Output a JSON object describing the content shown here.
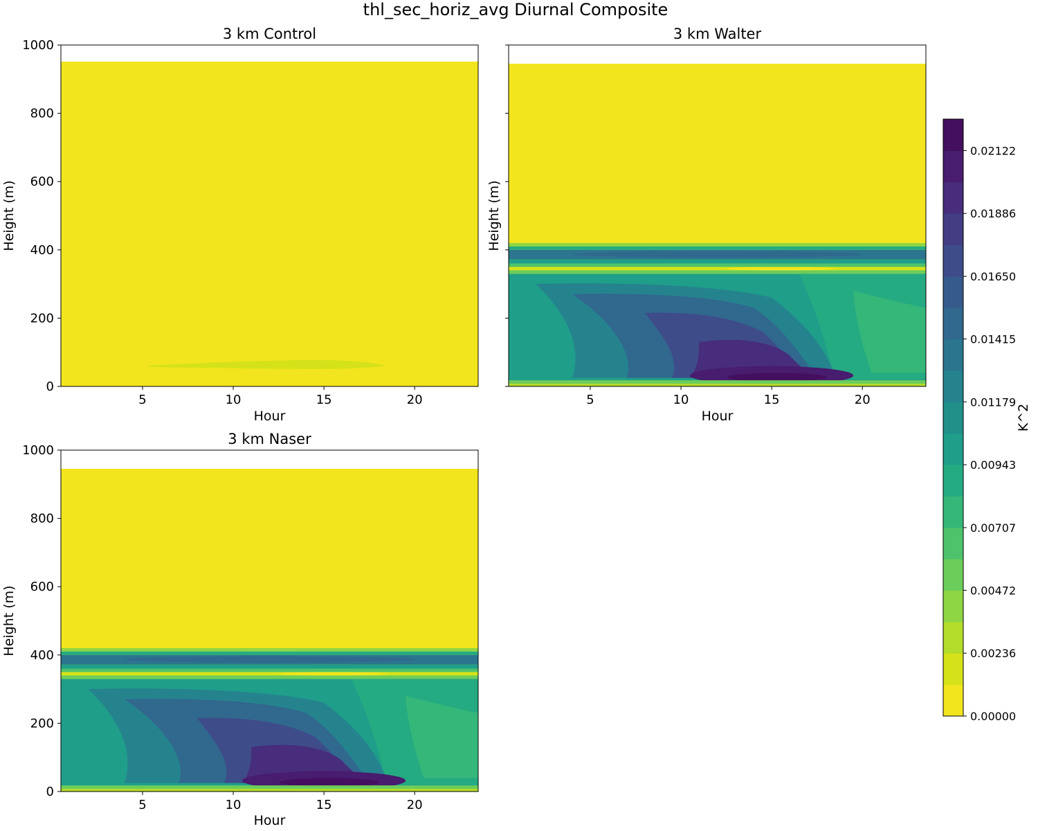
{
  "figure": {
    "title": "thl_sec_horiz_avg Diurnal Composite"
  },
  "chart_data": [
    {
      "type": "heatmap",
      "title": "3 km Control",
      "xlabel": "Hour",
      "ylabel": "Height (m)",
      "xlim": [
        0.5,
        23.5
      ],
      "ylim": [
        0,
        1000
      ],
      "xticks": [
        5,
        10,
        15,
        20
      ],
      "yticks": [
        0,
        200,
        400,
        600,
        800,
        1000
      ],
      "data_top_height": 950,
      "field": "near-zero everywhere; faint 0.001-0.002 band at 50-70 m between hours 6-18"
    },
    {
      "type": "heatmap",
      "title": "3 km Walter",
      "xlabel": "Hour",
      "ylabel": "Height (m)",
      "xlim": [
        0.5,
        23.5
      ],
      "ylim": [
        0,
        1000
      ],
      "xticks": [
        5,
        10,
        15,
        20
      ],
      "yticks": [
        0,
        200,
        400,
        600,
        800,
        1000
      ],
      "data_top_height": 945,
      "field": "band ~0.013-0.015 near 385 m, low values near 345 m; 0.008-0.016 below 330 m; maximum ~0.022 near 25 m at hour 15"
    },
    {
      "type": "heatmap",
      "title": "3 km Naser",
      "xlabel": "Hour",
      "ylabel": "Height (m)",
      "xlim": [
        0.5,
        23.5
      ],
      "ylim": [
        0,
        1000
      ],
      "xticks": [
        5,
        10,
        15,
        20
      ],
      "yticks": [
        0,
        200,
        400,
        600,
        800,
        1000
      ],
      "data_top_height": 945,
      "field": "same structure as Walter; maximum ~0.022 near 25 m at hour 15"
    }
  ],
  "colorbar": {
    "label": "K^2",
    "min": 0.0,
    "max": 0.0224,
    "ticks": [
      "0.00000",
      "0.00236",
      "0.00472",
      "0.00707",
      "0.00943",
      "0.01179",
      "0.01415",
      "0.01650",
      "0.01886",
      "0.02122"
    ],
    "colors": [
      "#f2e51d",
      "#d5e21a",
      "#b3dc2b",
      "#8fd644",
      "#6ccd5a",
      "#4ec36b",
      "#35b779",
      "#25ab82",
      "#1f9e89",
      "#219089",
      "#25838e",
      "#2b758e",
      "#31688e",
      "#375a8c",
      "#3e4c8a",
      "#433d84",
      "#472d7b",
      "#481c6e",
      "#440f5e"
    ]
  }
}
